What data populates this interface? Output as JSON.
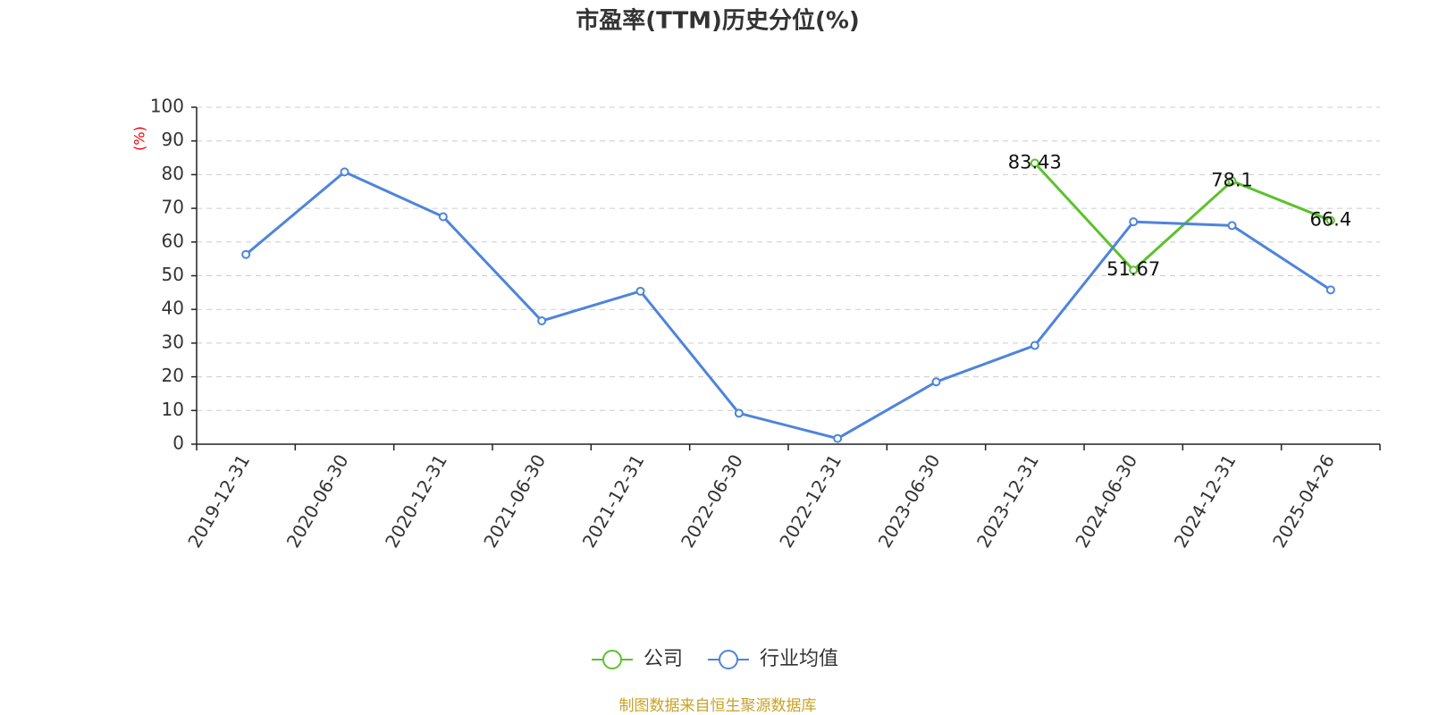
{
  "chart_data": {
    "type": "line",
    "title": "市盈率(TTM)历史分位(%)",
    "y_label": "(%)",
    "categories": [
      "2019-12-31",
      "2020-06-30",
      "2020-12-31",
      "2021-06-30",
      "2021-12-31",
      "2022-06-30",
      "2022-12-31",
      "2023-06-30",
      "2023-12-31",
      "2024-06-30",
      "2024-12-31",
      "2025-04-26"
    ],
    "series": [
      {
        "name": "公司",
        "color": "#5bc22c",
        "values": [
          null,
          null,
          null,
          null,
          null,
          null,
          null,
          null,
          83.43,
          51.67,
          78.1,
          66.4
        ],
        "show_labels": true
      },
      {
        "name": "行业均值",
        "color": "#4e84dc",
        "values": [
          56.3,
          80.8,
          67.5,
          36.6,
          45.4,
          9.2,
          1.7,
          18.5,
          29.3,
          66.0,
          64.9,
          45.8
        ],
        "show_labels": false
      }
    ],
    "ylim": [
      0,
      100
    ],
    "yticks": [
      0,
      10,
      20,
      30,
      40,
      50,
      60,
      70,
      80,
      90,
      100
    ],
    "grid": true,
    "source": "制图数据来自恒生聚源数据库"
  }
}
